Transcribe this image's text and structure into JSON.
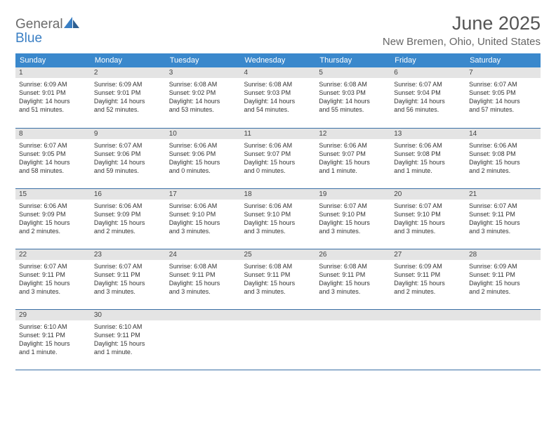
{
  "logo": {
    "line1": "General",
    "line2": "Blue"
  },
  "title": "June 2025",
  "location": "New Bremen, Ohio, United States",
  "colors": {
    "header_bg": "#3a88cc",
    "header_fg": "#ffffff",
    "daynum_bg": "#e4e4e4",
    "row_border": "#3a6fa5",
    "logo_gray": "#6b6b6b",
    "logo_blue": "#3a7fc4"
  },
  "weekdays": [
    "Sunday",
    "Monday",
    "Tuesday",
    "Wednesday",
    "Thursday",
    "Friday",
    "Saturday"
  ],
  "weeks": [
    [
      {
        "n": "1",
        "sr": "Sunrise: 6:09 AM",
        "ss": "Sunset: 9:01 PM",
        "d1": "Daylight: 14 hours",
        "d2": "and 51 minutes."
      },
      {
        "n": "2",
        "sr": "Sunrise: 6:09 AM",
        "ss": "Sunset: 9:01 PM",
        "d1": "Daylight: 14 hours",
        "d2": "and 52 minutes."
      },
      {
        "n": "3",
        "sr": "Sunrise: 6:08 AM",
        "ss": "Sunset: 9:02 PM",
        "d1": "Daylight: 14 hours",
        "d2": "and 53 minutes."
      },
      {
        "n": "4",
        "sr": "Sunrise: 6:08 AM",
        "ss": "Sunset: 9:03 PM",
        "d1": "Daylight: 14 hours",
        "d2": "and 54 minutes."
      },
      {
        "n": "5",
        "sr": "Sunrise: 6:08 AM",
        "ss": "Sunset: 9:03 PM",
        "d1": "Daylight: 14 hours",
        "d2": "and 55 minutes."
      },
      {
        "n": "6",
        "sr": "Sunrise: 6:07 AM",
        "ss": "Sunset: 9:04 PM",
        "d1": "Daylight: 14 hours",
        "d2": "and 56 minutes."
      },
      {
        "n": "7",
        "sr": "Sunrise: 6:07 AM",
        "ss": "Sunset: 9:05 PM",
        "d1": "Daylight: 14 hours",
        "d2": "and 57 minutes."
      }
    ],
    [
      {
        "n": "8",
        "sr": "Sunrise: 6:07 AM",
        "ss": "Sunset: 9:05 PM",
        "d1": "Daylight: 14 hours",
        "d2": "and 58 minutes."
      },
      {
        "n": "9",
        "sr": "Sunrise: 6:07 AM",
        "ss": "Sunset: 9:06 PM",
        "d1": "Daylight: 14 hours",
        "d2": "and 59 minutes."
      },
      {
        "n": "10",
        "sr": "Sunrise: 6:06 AM",
        "ss": "Sunset: 9:06 PM",
        "d1": "Daylight: 15 hours",
        "d2": "and 0 minutes."
      },
      {
        "n": "11",
        "sr": "Sunrise: 6:06 AM",
        "ss": "Sunset: 9:07 PM",
        "d1": "Daylight: 15 hours",
        "d2": "and 0 minutes."
      },
      {
        "n": "12",
        "sr": "Sunrise: 6:06 AM",
        "ss": "Sunset: 9:07 PM",
        "d1": "Daylight: 15 hours",
        "d2": "and 1 minute."
      },
      {
        "n": "13",
        "sr": "Sunrise: 6:06 AM",
        "ss": "Sunset: 9:08 PM",
        "d1": "Daylight: 15 hours",
        "d2": "and 1 minute."
      },
      {
        "n": "14",
        "sr": "Sunrise: 6:06 AM",
        "ss": "Sunset: 9:08 PM",
        "d1": "Daylight: 15 hours",
        "d2": "and 2 minutes."
      }
    ],
    [
      {
        "n": "15",
        "sr": "Sunrise: 6:06 AM",
        "ss": "Sunset: 9:09 PM",
        "d1": "Daylight: 15 hours",
        "d2": "and 2 minutes."
      },
      {
        "n": "16",
        "sr": "Sunrise: 6:06 AM",
        "ss": "Sunset: 9:09 PM",
        "d1": "Daylight: 15 hours",
        "d2": "and 2 minutes."
      },
      {
        "n": "17",
        "sr": "Sunrise: 6:06 AM",
        "ss": "Sunset: 9:10 PM",
        "d1": "Daylight: 15 hours",
        "d2": "and 3 minutes."
      },
      {
        "n": "18",
        "sr": "Sunrise: 6:06 AM",
        "ss": "Sunset: 9:10 PM",
        "d1": "Daylight: 15 hours",
        "d2": "and 3 minutes."
      },
      {
        "n": "19",
        "sr": "Sunrise: 6:07 AM",
        "ss": "Sunset: 9:10 PM",
        "d1": "Daylight: 15 hours",
        "d2": "and 3 minutes."
      },
      {
        "n": "20",
        "sr": "Sunrise: 6:07 AM",
        "ss": "Sunset: 9:10 PM",
        "d1": "Daylight: 15 hours",
        "d2": "and 3 minutes."
      },
      {
        "n": "21",
        "sr": "Sunrise: 6:07 AM",
        "ss": "Sunset: 9:11 PM",
        "d1": "Daylight: 15 hours",
        "d2": "and 3 minutes."
      }
    ],
    [
      {
        "n": "22",
        "sr": "Sunrise: 6:07 AM",
        "ss": "Sunset: 9:11 PM",
        "d1": "Daylight: 15 hours",
        "d2": "and 3 minutes."
      },
      {
        "n": "23",
        "sr": "Sunrise: 6:07 AM",
        "ss": "Sunset: 9:11 PM",
        "d1": "Daylight: 15 hours",
        "d2": "and 3 minutes."
      },
      {
        "n": "24",
        "sr": "Sunrise: 6:08 AM",
        "ss": "Sunset: 9:11 PM",
        "d1": "Daylight: 15 hours",
        "d2": "and 3 minutes."
      },
      {
        "n": "25",
        "sr": "Sunrise: 6:08 AM",
        "ss": "Sunset: 9:11 PM",
        "d1": "Daylight: 15 hours",
        "d2": "and 3 minutes."
      },
      {
        "n": "26",
        "sr": "Sunrise: 6:08 AM",
        "ss": "Sunset: 9:11 PM",
        "d1": "Daylight: 15 hours",
        "d2": "and 3 minutes."
      },
      {
        "n": "27",
        "sr": "Sunrise: 6:09 AM",
        "ss": "Sunset: 9:11 PM",
        "d1": "Daylight: 15 hours",
        "d2": "and 2 minutes."
      },
      {
        "n": "28",
        "sr": "Sunrise: 6:09 AM",
        "ss": "Sunset: 9:11 PM",
        "d1": "Daylight: 15 hours",
        "d2": "and 2 minutes."
      }
    ],
    [
      {
        "n": "29",
        "sr": "Sunrise: 6:10 AM",
        "ss": "Sunset: 9:11 PM",
        "d1": "Daylight: 15 hours",
        "d2": "and 1 minute."
      },
      {
        "n": "30",
        "sr": "Sunrise: 6:10 AM",
        "ss": "Sunset: 9:11 PM",
        "d1": "Daylight: 15 hours",
        "d2": "and 1 minute."
      },
      {
        "empty": true
      },
      {
        "empty": true
      },
      {
        "empty": true
      },
      {
        "empty": true
      },
      {
        "empty": true
      }
    ]
  ]
}
